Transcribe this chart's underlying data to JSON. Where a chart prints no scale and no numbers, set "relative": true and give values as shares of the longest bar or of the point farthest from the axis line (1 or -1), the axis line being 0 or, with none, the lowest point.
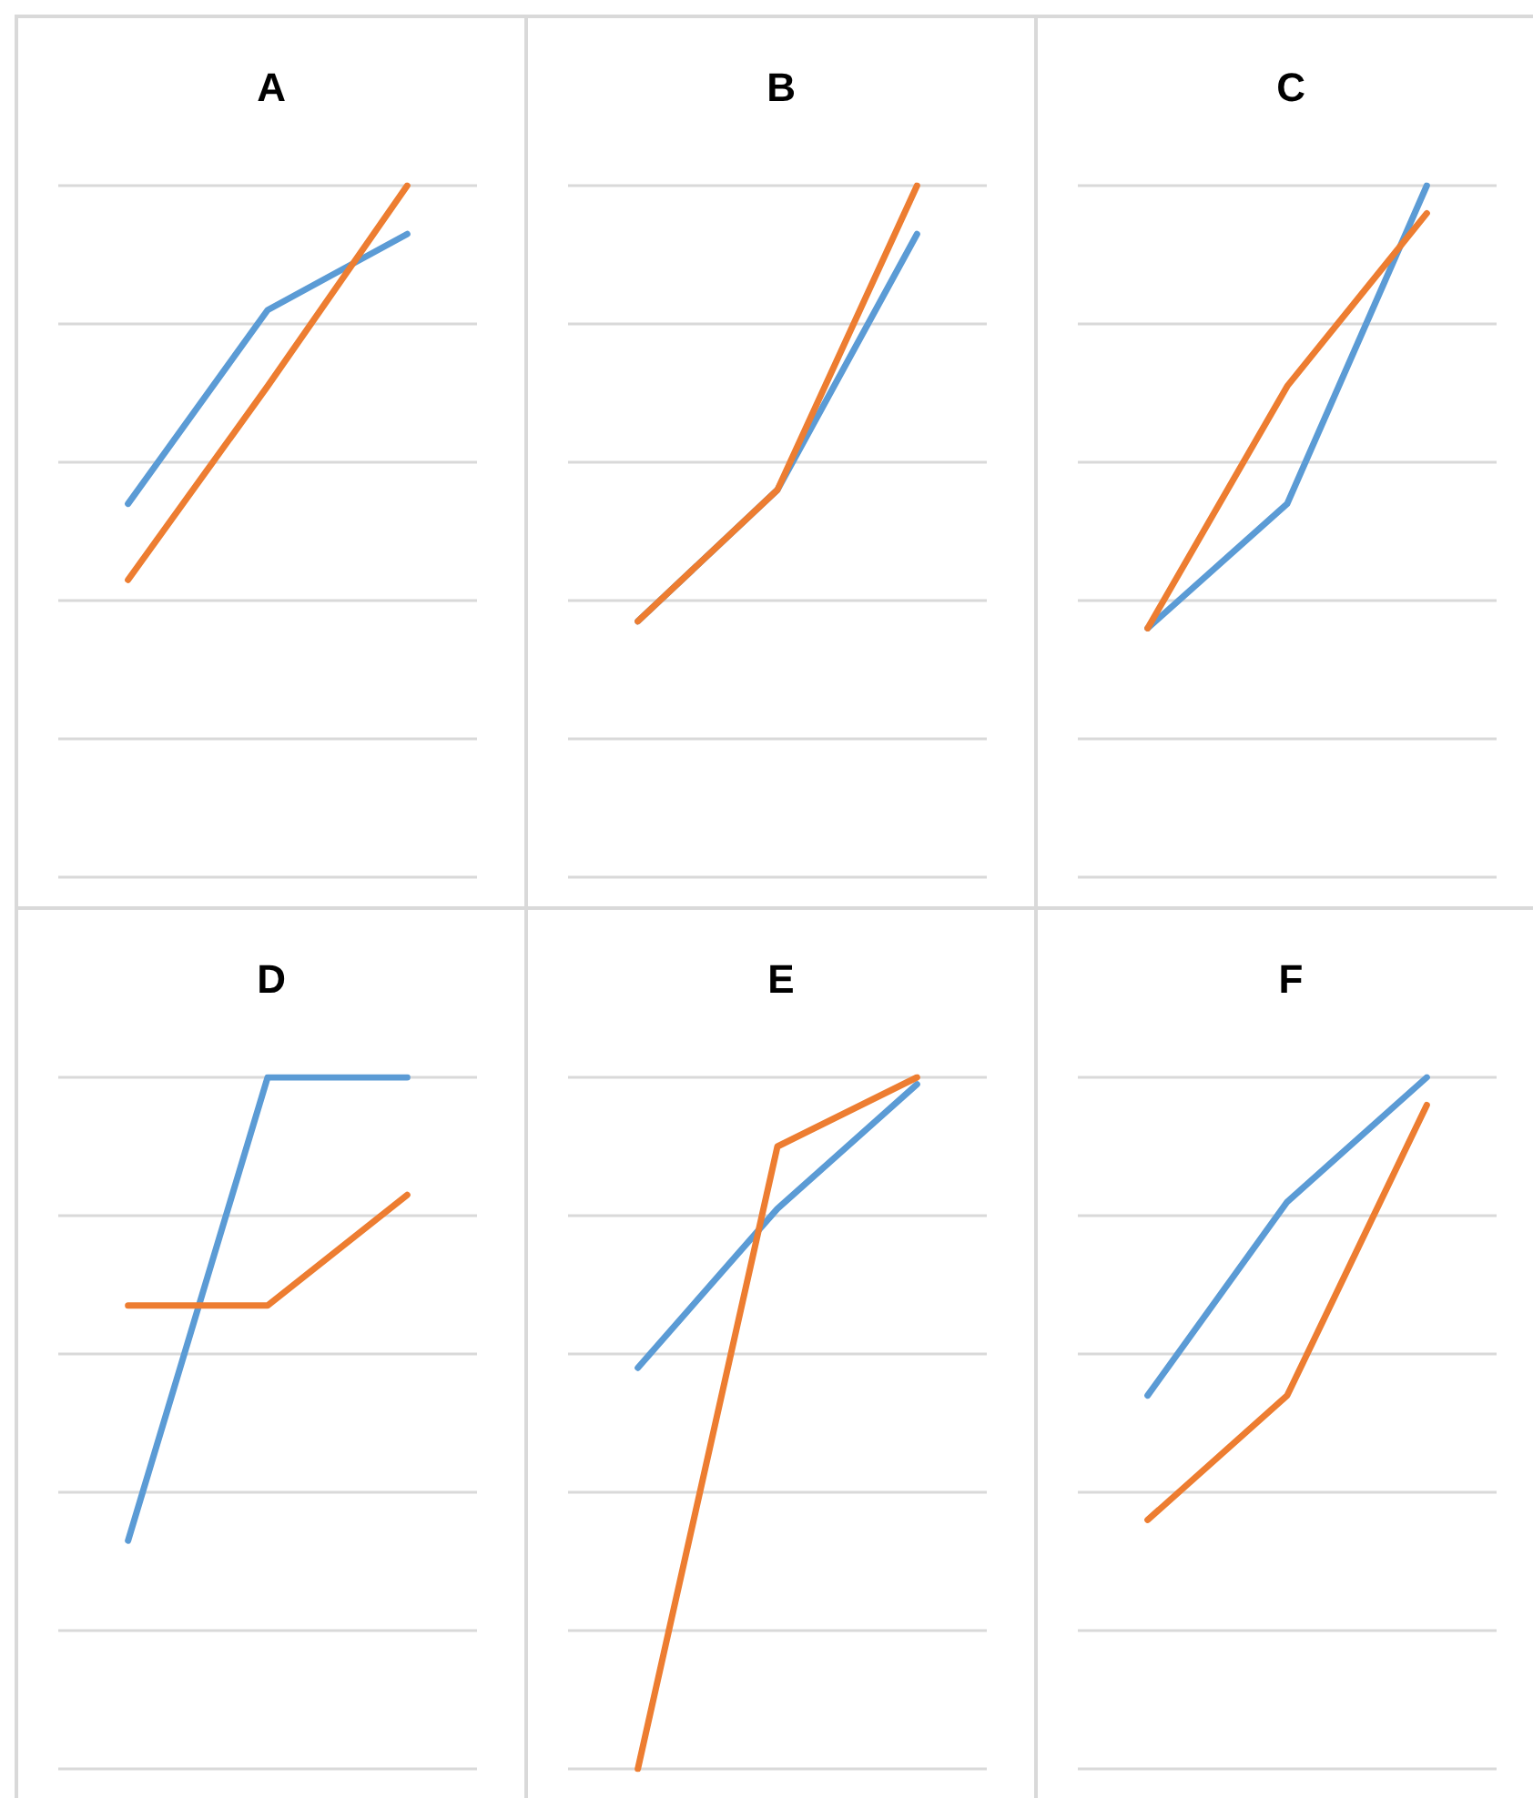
{
  "chart_data": [
    {
      "type": "line",
      "title": "A",
      "relative": true,
      "categories": [
        null,
        null,
        null
      ],
      "grid": "y",
      "marker": "none",
      "series": [
        {
          "color": "#5b9bd5",
          "values": [
            0.54,
            0.82,
            0.93
          ]
        },
        {
          "color": "#ed7d31",
          "values": [
            0.43,
            0.71,
            1
          ]
        }
      ]
    },
    {
      "type": "line",
      "title": "B",
      "relative": true,
      "categories": [
        null,
        null,
        null
      ],
      "grid": "y",
      "marker": "none",
      "series": [
        {
          "color": "#5b9bd5",
          "values": [
            0.37,
            0.56,
            0.93
          ]
        },
        {
          "color": "#ed7d31",
          "values": [
            0.37,
            0.56,
            1
          ]
        }
      ]
    },
    {
      "type": "line",
      "title": "C",
      "relative": true,
      "categories": [
        null,
        null,
        null
      ],
      "grid": "y",
      "marker": "none",
      "series": [
        {
          "color": "#5b9bd5",
          "values": [
            0.36,
            0.54,
            1
          ]
        },
        {
          "color": "#ed7d31",
          "values": [
            0.36,
            0.71,
            0.96
          ]
        }
      ]
    },
    {
      "type": "line",
      "title": "D",
      "relative": true,
      "categories": [
        null,
        null,
        null
      ],
      "grid": "y",
      "marker": "none",
      "series": [
        {
          "color": "#5b9bd5",
          "values": [
            0.33,
            1,
            1
          ]
        },
        {
          "color": "#ed7d31",
          "values": [
            0.67,
            0.67,
            0.83
          ]
        }
      ]
    },
    {
      "type": "line",
      "title": "E",
      "relative": true,
      "categories": [
        null,
        null,
        null
      ],
      "grid": "y",
      "marker": "none",
      "series": [
        {
          "color": "#5b9bd5",
          "values": [
            0.58,
            0.81,
            0.99
          ]
        },
        {
          "color": "#ed7d31",
          "values": [
            0,
            0.9,
            1
          ]
        }
      ]
    },
    {
      "type": "line",
      "title": "F",
      "relative": true,
      "categories": [
        null,
        null,
        null
      ],
      "grid": "y",
      "marker": "none",
      "series": [
        {
          "color": "#5b9bd5",
          "values": [
            0.54,
            0.82,
            1
          ]
        },
        {
          "color": "#ed7d31",
          "values": [
            0.36,
            0.54,
            0.96
          ]
        }
      ]
    }
  ]
}
